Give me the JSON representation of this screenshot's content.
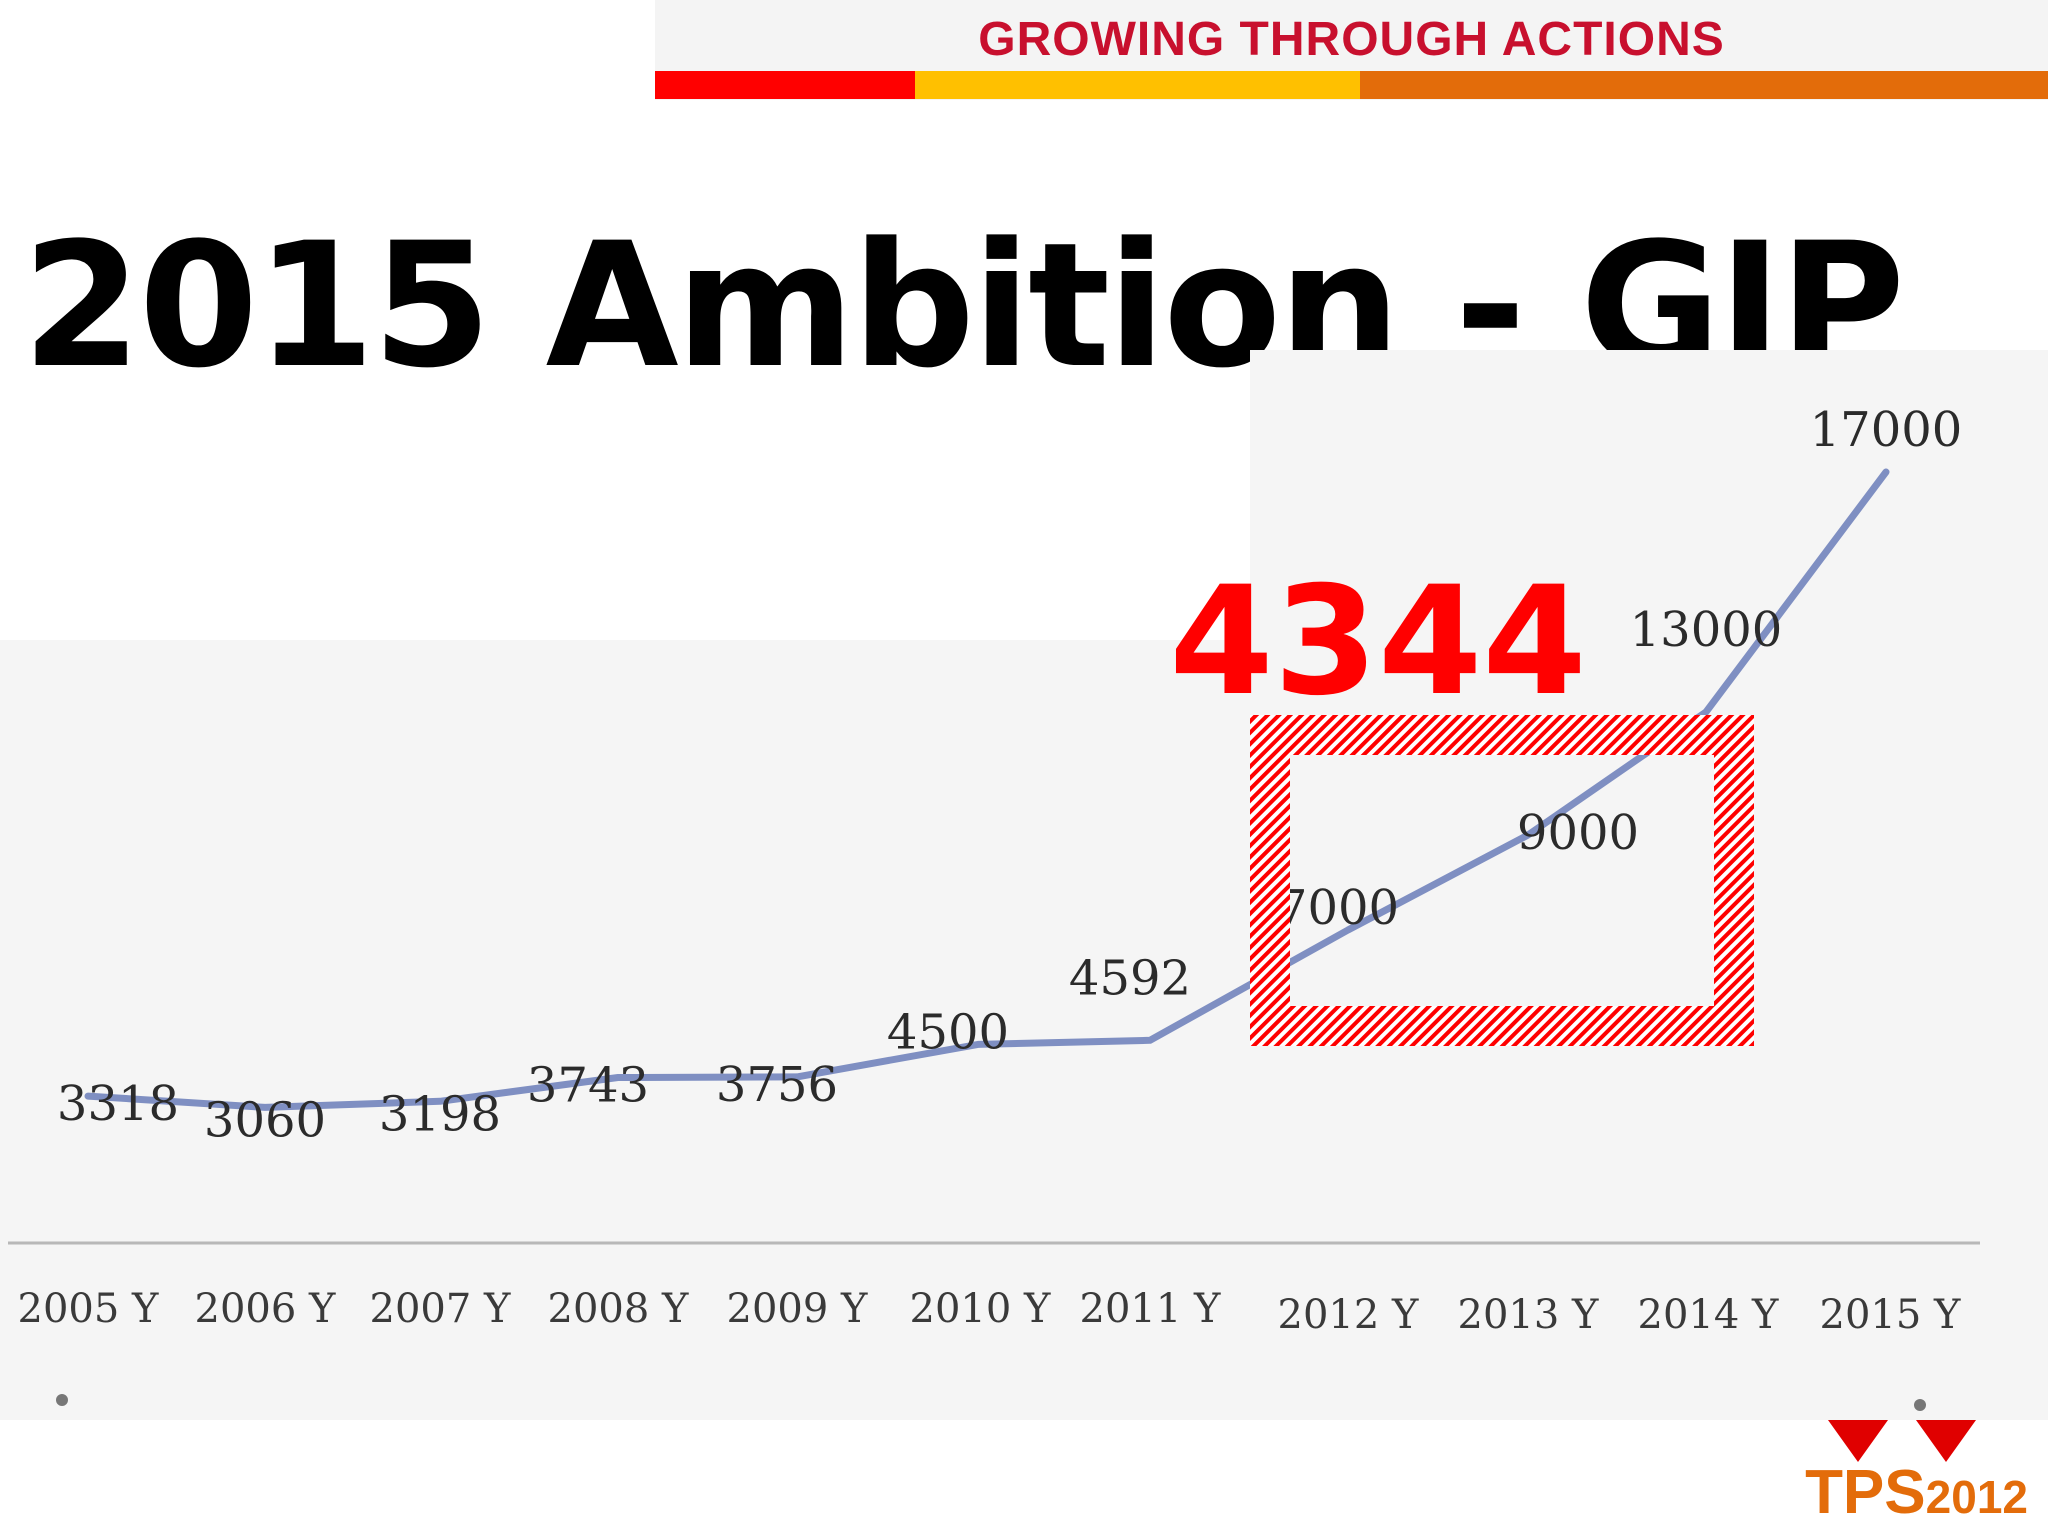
{
  "header": {
    "banner_title": "GROWING THROUGH ACTIONS",
    "title_color": "#c8102e",
    "stripe_colors": [
      "#ff0000",
      "#ffc000",
      "#e36c0a"
    ]
  },
  "slide": {
    "title": "2015 Ambition - GIP"
  },
  "highlight": {
    "value": "4344",
    "color": "#ff0000",
    "box_years": [
      "2012 Y",
      "2013 Y"
    ]
  },
  "chart_data": {
    "type": "line",
    "categories": [
      "2005 Y",
      "2006 Y",
      "2007 Y",
      "2008 Y",
      "2009 Y",
      "2010 Y",
      "2011 Y",
      "2012 Y",
      "2013 Y",
      "2014 Y",
      "2015 Y"
    ],
    "series": [
      {
        "values": [
          3318,
          3060,
          3198,
          3743,
          3756,
          4500,
          4592,
          7000,
          9000,
          13000,
          17000
        ]
      }
    ],
    "data_labels": [
      "3318",
      "3060",
      "3198",
      "3743",
      "3756",
      "4500",
      "4592",
      "7000",
      "9000",
      "13000",
      "17000"
    ],
    "line_color": "#7f8fc2",
    "grid": false,
    "legend": "none"
  },
  "logo": {
    "text": "TPS",
    "year": "2012",
    "color": "#e36c0a",
    "mark_color": "#e00000"
  }
}
